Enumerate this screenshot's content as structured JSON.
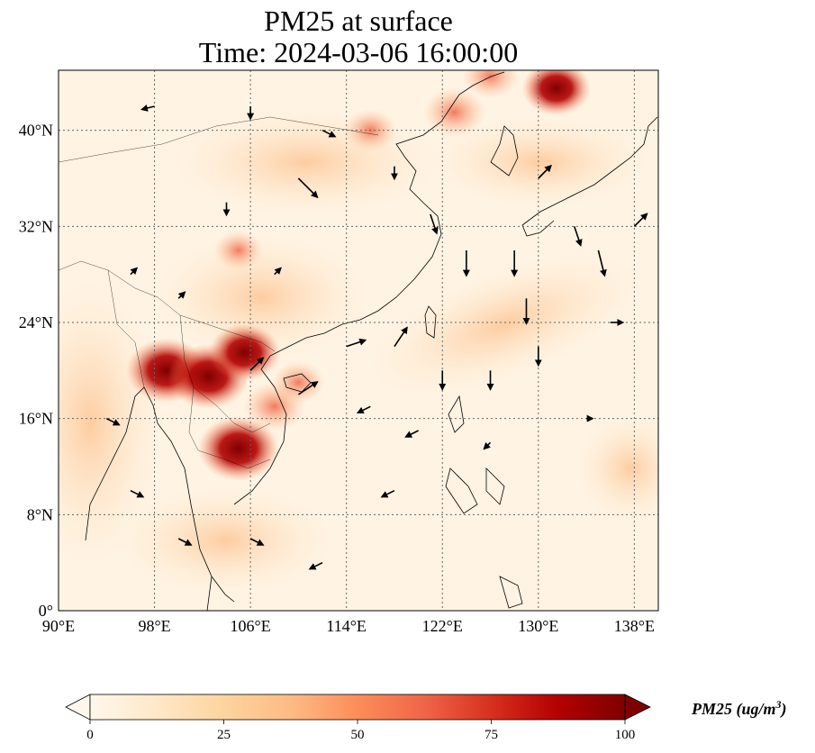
{
  "title": {
    "line1": "PM25 at surface",
    "line2": "Time: 2024-03-06 16:00:00"
  },
  "map": {
    "projection": "PlateCarree",
    "lon_range": [
      90,
      140
    ],
    "lat_range": [
      0,
      45
    ],
    "lon_ticks": [
      {
        "value": 90,
        "label": "90°E"
      },
      {
        "value": 98,
        "label": "98°E"
      },
      {
        "value": 106,
        "label": "106°E"
      },
      {
        "value": 114,
        "label": "114°E"
      },
      {
        "value": 122,
        "label": "122°E"
      },
      {
        "value": 130,
        "label": "130°E"
      },
      {
        "value": 138,
        "label": "138°E"
      }
    ],
    "lat_ticks": [
      {
        "value": 0,
        "label": "0°"
      },
      {
        "value": 8,
        "label": "8°N"
      },
      {
        "value": 16,
        "label": "16°N"
      },
      {
        "value": 24,
        "label": "24°N"
      },
      {
        "value": 32,
        "label": "32°N"
      },
      {
        "value": 40,
        "label": "40°N"
      }
    ],
    "gridlines": "dotted",
    "field": "PM25",
    "hotspots": [
      {
        "region": "Northern Laos / Myanmar border",
        "lon": 99,
        "lat": 20,
        "value": 100
      },
      {
        "region": "Northern Laos",
        "lon": 102.5,
        "lat": 19.5,
        "value": 100
      },
      {
        "region": "Cambodia",
        "lon": 105,
        "lat": 13.5,
        "value": 100
      },
      {
        "region": "Northern Vietnam",
        "lon": 105.5,
        "lat": 21.5,
        "value": 85
      },
      {
        "region": "Central Vietnam",
        "lon": 108,
        "lat": 17,
        "value": 70
      },
      {
        "region": "Hainan",
        "lon": 110,
        "lat": 19,
        "value": 55
      },
      {
        "region": "Sichuan Basin",
        "lon": 105,
        "lat": 30,
        "value": 50
      },
      {
        "region": "Beijing area",
        "lon": 116,
        "lat": 40,
        "value": 55
      },
      {
        "region": "Northeast China",
        "lon": 123,
        "lat": 41.5,
        "value": 70
      },
      {
        "region": "Liaoning coast",
        "lon": 126,
        "lat": 44.5,
        "value": 60
      },
      {
        "region": "Vladivostok area",
        "lon": 131.5,
        "lat": 43.5,
        "value": 80
      }
    ],
    "wind_arrows": [
      {
        "lon": 98,
        "lat": 42,
        "u": -2,
        "v": -0.5
      },
      {
        "lon": 106,
        "lat": 42,
        "u": 0,
        "v": -2
      },
      {
        "lon": 112,
        "lat": 40,
        "u": 2,
        "v": -1
      },
      {
        "lon": 110,
        "lat": 36,
        "u": 3,
        "v": -3
      },
      {
        "lon": 104,
        "lat": 34,
        "u": 0,
        "v": -2
      },
      {
        "lon": 118,
        "lat": 37,
        "u": 0,
        "v": -2
      },
      {
        "lon": 121,
        "lat": 33,
        "u": 1,
        "v": -3
      },
      {
        "lon": 124,
        "lat": 30,
        "u": 0,
        "v": -4
      },
      {
        "lon": 128,
        "lat": 30,
        "u": 0,
        "v": -4
      },
      {
        "lon": 129,
        "lat": 26,
        "u": 0,
        "v": -4
      },
      {
        "lon": 133,
        "lat": 32,
        "u": 1,
        "v": -3
      },
      {
        "lon": 135,
        "lat": 30,
        "u": 1,
        "v": -4
      },
      {
        "lon": 138,
        "lat": 32,
        "u": 2,
        "v": 2
      },
      {
        "lon": 114,
        "lat": 22,
        "u": 3,
        "v": 1
      },
      {
        "lon": 118,
        "lat": 22,
        "u": 2,
        "v": 3
      },
      {
        "lon": 110,
        "lat": 18,
        "u": 3,
        "v": 2
      },
      {
        "lon": 106,
        "lat": 20,
        "u": 2,
        "v": 2
      },
      {
        "lon": 122,
        "lat": 20,
        "u": 0,
        "v": -3
      },
      {
        "lon": 126,
        "lat": 20,
        "u": 0,
        "v": -3
      },
      {
        "lon": 130,
        "lat": 22,
        "u": 0,
        "v": -3
      },
      {
        "lon": 116,
        "lat": 17,
        "u": -2,
        "v": -1
      },
      {
        "lon": 120,
        "lat": 15,
        "u": -2,
        "v": -1
      },
      {
        "lon": 118,
        "lat": 10,
        "u": -2,
        "v": -1
      },
      {
        "lon": 126,
        "lat": 14,
        "u": -1,
        "v": -1
      },
      {
        "lon": 96,
        "lat": 28,
        "u": 1,
        "v": 1
      },
      {
        "lon": 100,
        "lat": 26,
        "u": 1,
        "v": 1
      },
      {
        "lon": 94,
        "lat": 16,
        "u": 2,
        "v": -1
      },
      {
        "lon": 96,
        "lat": 10,
        "u": 2,
        "v": -1
      },
      {
        "lon": 100,
        "lat": 6,
        "u": 2,
        "v": -1
      },
      {
        "lon": 106,
        "lat": 6,
        "u": 2,
        "v": -1
      },
      {
        "lon": 112,
        "lat": 4,
        "u": -2,
        "v": -1
      },
      {
        "lon": 130,
        "lat": 36,
        "u": 2,
        "v": 2
      },
      {
        "lon": 136,
        "lat": 24,
        "u": 2,
        "v": 0
      },
      {
        "lon": 134,
        "lat": 16,
        "u": 1,
        "v": 0
      },
      {
        "lon": 108,
        "lat": 28,
        "u": 1,
        "v": 1
      }
    ]
  },
  "colorbar": {
    "colormap": "OrRd",
    "min": 0,
    "max": 100,
    "extend": "both",
    "ticks": [
      "0",
      "25",
      "50",
      "75",
      "100"
    ],
    "label_text": "PM25 (ug/m",
    "label_sup": "3",
    "label_close": ")",
    "colors": [
      "#fff7ec",
      "#fee8c8",
      "#fdd49e",
      "#fdbb84",
      "#fc8d59",
      "#ef6548",
      "#d7301f",
      "#b30000",
      "#7f0000"
    ]
  }
}
